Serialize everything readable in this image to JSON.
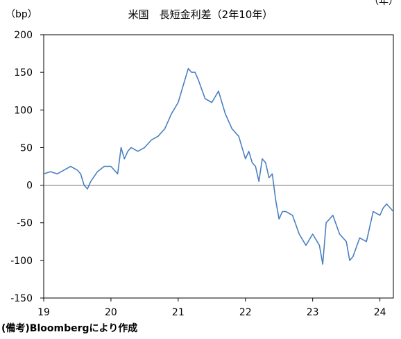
{
  "chart_data": {
    "type": "line",
    "title": "米国　長短金利差（2年10年）",
    "ylabel": "（bp）",
    "xlabel": "",
    "corner_unit": "（年）",
    "ylim": [
      -150,
      200
    ],
    "xlim": [
      19,
      24.2
    ],
    "yticks": [
      -150,
      -100,
      -50,
      0,
      50,
      100,
      150,
      200
    ],
    "xticks": [
      19,
      20,
      21,
      22,
      23,
      24
    ],
    "ytick_labels": [
      "-150",
      "-100",
      "-50",
      "0",
      "50",
      "100",
      "150",
      "200"
    ],
    "xtick_labels": [
      "19",
      "20",
      "21",
      "22",
      "23",
      "24"
    ],
    "zero_line": true,
    "grid": false,
    "series": [
      {
        "color": "#4a7fc1",
        "x": [
          19.0,
          19.1,
          19.2,
          19.3,
          19.4,
          19.5,
          19.55,
          19.6,
          19.65,
          19.7,
          19.8,
          19.9,
          20.0,
          20.1,
          20.15,
          20.2,
          20.25,
          20.3,
          20.4,
          20.5,
          20.6,
          20.7,
          20.8,
          20.9,
          21.0,
          21.1,
          21.15,
          21.2,
          21.25,
          21.3,
          21.4,
          21.5,
          21.6,
          21.7,
          21.8,
          21.9,
          22.0,
          22.05,
          22.1,
          22.15,
          22.2,
          22.25,
          22.3,
          22.35,
          22.4,
          22.45,
          22.5,
          22.55,
          22.6,
          22.7,
          22.8,
          22.9,
          23.0,
          23.1,
          23.15,
          23.2,
          23.3,
          23.4,
          23.5,
          23.55,
          23.6,
          23.7,
          23.8,
          23.9,
          24.0,
          24.05,
          24.1,
          24.15,
          24.2
        ],
        "y": [
          15,
          18,
          15,
          20,
          25,
          20,
          15,
          0,
          -5,
          5,
          18,
          25,
          25,
          15,
          50,
          35,
          45,
          50,
          45,
          50,
          60,
          65,
          75,
          95,
          110,
          140,
          155,
          150,
          150,
          140,
          115,
          110,
          125,
          95,
          75,
          65,
          35,
          45,
          30,
          25,
          5,
          35,
          30,
          10,
          15,
          -20,
          -45,
          -35,
          -35,
          -40,
          -65,
          -80,
          -65,
          -80,
          -105,
          -50,
          -40,
          -65,
          -75,
          -100,
          -95,
          -70,
          -75,
          -35,
          -40,
          -30,
          -25,
          -30,
          -35
        ]
      }
    ]
  },
  "source_note": "(備考)Bloombergにより作成"
}
